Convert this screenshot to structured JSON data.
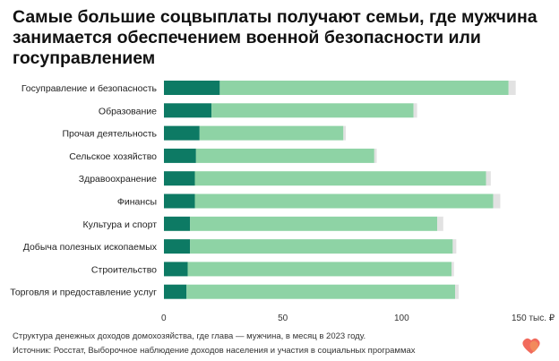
{
  "title": "Самые большие соцвыплаты получают семьи, где мужчина занимается обеспечением военной безопасности или госуправлением",
  "footnote": "Структура денежных доходов домохозяйства, где глава — мужчина, в месяц в 2023 году.",
  "source": "Источник: Росстат, Выборочное наблюдение доходов населения и участия в социальных программах",
  "chart_data": {
    "type": "bar",
    "orientation": "horizontal",
    "stacked": true,
    "categories": [
      "Госуправление и безопасность",
      "Образование",
      "Прочая деятельность",
      "Сельское хозяйство",
      "Здравоохранение",
      "Финансы",
      "Культура и спорт",
      "Добыча полезных ископаемых",
      "Строительство",
      "Торговля и предоставление услуг"
    ],
    "series": [
      {
        "values": [
          23.5,
          20.0,
          15.0,
          13.5,
          13.0,
          13.0,
          11.0,
          11.0,
          10.0,
          9.5
        ],
        "color": "#0d7a64"
      },
      {
        "values": [
          121.5,
          85.0,
          60.5,
          75.0,
          122.5,
          125.5,
          104.0,
          110.5,
          111.0,
          113.0
        ],
        "color": "#8ed3a5"
      },
      {
        "values": [
          3.0,
          1.5,
          1.0,
          1.0,
          2.0,
          3.0,
          2.5,
          1.5,
          1.0,
          1.5
        ],
        "color": "#e2e2e2"
      }
    ],
    "x_ticks": [
      "0",
      "50",
      "100",
      "150 тыс. ₽"
    ],
    "x_tick_values": [
      0,
      50,
      100,
      150
    ],
    "xlim": [
      0,
      150
    ],
    "grid": false,
    "legend": "none"
  },
  "colors": {
    "dark": "#0d7a64",
    "light": "#8ed3a5",
    "gray": "#e2e2e2",
    "logo": "#ef5a4a"
  }
}
